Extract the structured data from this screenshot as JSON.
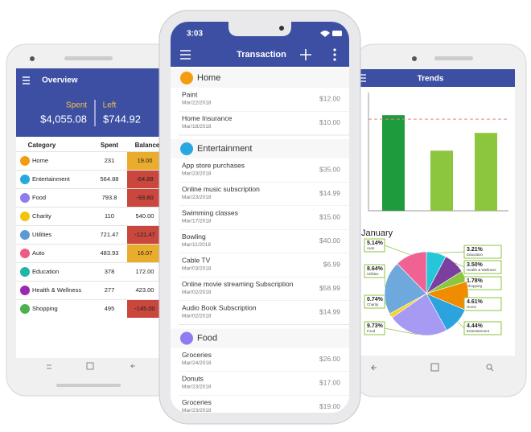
{
  "overview": {
    "title": "Overview",
    "spent_label": "Spent",
    "left_label": "Left",
    "spent": "$4,055.08",
    "left": "$744.92",
    "columns": [
      "Category",
      "Spent",
      "Balance"
    ],
    "rows": [
      {
        "category": "Home",
        "spent": "231",
        "balance": "19.00",
        "icon_color": "#f39c12",
        "balance_color": "#e9ac2c"
      },
      {
        "category": "Entertainment",
        "spent": "564.88",
        "balance": "-64.88",
        "icon_color": "#29a8e0",
        "balance_color": "#c9473d"
      },
      {
        "category": "Food",
        "spent": "793.8",
        "balance": "-93.80",
        "icon_color": "#8e7cf0",
        "balance_color": "#c9473d"
      },
      {
        "category": "Charity",
        "spent": "110",
        "balance": "540.00",
        "icon_color": "#f1c40f",
        "balance_color": "#ffffff"
      },
      {
        "category": "Utilities",
        "spent": "721.47",
        "balance": "-121.47",
        "icon_color": "#5b9bd5",
        "balance_color": "#c9473d"
      },
      {
        "category": "Auto",
        "spent": "483.93",
        "balance": "16.07",
        "icon_color": "#ef5b87",
        "balance_color": "#e9ac2c"
      },
      {
        "category": "Education",
        "spent": "378",
        "balance": "172.00",
        "icon_color": "#1fb5a8",
        "balance_color": "#ffffff"
      },
      {
        "category": "Health & Wellness",
        "spent": "277",
        "balance": "423.00",
        "icon_color": "#9c27b0",
        "balance_color": "#ffffff"
      },
      {
        "category": "Shopping",
        "spent": "495",
        "balance": "-145.00",
        "icon_color": "#4caf50",
        "balance_color": "#c9473d"
      }
    ]
  },
  "transaction": {
    "time": "3:03",
    "title": "Transaction",
    "groups": [
      {
        "name": "Home",
        "color": "#f39c12",
        "items": [
          {
            "name": "Paint",
            "date": "Mar/22/2018",
            "amount": "$12.00"
          },
          {
            "name": "Home Insurance",
            "date": "Mar/18/2018",
            "amount": "$10.00"
          }
        ]
      },
      {
        "name": "Entertainment",
        "color": "#29a8e0",
        "items": [
          {
            "name": "App store purchases",
            "date": "Mar/23/2018",
            "amount": "$35.00"
          },
          {
            "name": "Online music subscription",
            "date": "Mar/23/2018",
            "amount": "$14.99"
          },
          {
            "name": "Swimming classes",
            "date": "Mar/17/2018",
            "amount": "$15.00"
          },
          {
            "name": "Bowling",
            "date": "Mar/11/2018",
            "amount": "$40.00"
          },
          {
            "name": "Cable TV",
            "date": "Mar/03/2018",
            "amount": "$6.99"
          },
          {
            "name": "Online movie streaming Subscription",
            "date": "Mar/02/2018",
            "amount": "$58.99"
          },
          {
            "name": "Audio Book Subscription",
            "date": "Mar/02/2018",
            "amount": "$14.99"
          }
        ]
      },
      {
        "name": "Food",
        "color": "#8e7cf0",
        "items": [
          {
            "name": "Groceries",
            "date": "Mar/24/2018",
            "amount": "$26.00"
          },
          {
            "name": "Donuts",
            "date": "Mar/23/2018",
            "amount": "$17.00"
          },
          {
            "name": "Groceries",
            "date": "Mar/23/2018",
            "amount": "$19.00"
          }
        ]
      }
    ]
  },
  "trends": {
    "title": "Trends",
    "ylim": [
      0,
      120
    ],
    "bar_values": [
      97,
      61,
      79
    ],
    "bar_colors": [
      "#1e9b3c",
      "#8cc63f",
      "#8cc63f"
    ],
    "target": 93,
    "target_color": "#f08080",
    "pie": {
      "title": "January",
      "slices": [
        {
          "name": "Education",
          "value": 3.21,
          "value_label": "3.21%",
          "color": "#26c6da"
        },
        {
          "name": "Health & Wellness",
          "value": 3.5,
          "value_label": "3.50%",
          "color": "#7b3fa0"
        },
        {
          "name": "Shopping",
          "value": 1.78,
          "value_label": "1.78%",
          "color": "#8cc63f"
        },
        {
          "name": "Home",
          "value": 4.61,
          "value_label": "4.61%",
          "color": "#f08c00"
        },
        {
          "name": "Entertainment",
          "value": 4.44,
          "value_label": "4.44%",
          "color": "#2ba3df"
        },
        {
          "name": "Food",
          "value": 9.73,
          "value_label": "9.73%",
          "color": "#a79af2"
        },
        {
          "name": "Charity",
          "value": 0.74,
          "value_label": "0.74%",
          "color": "#f9d423"
        },
        {
          "name": "Utilities",
          "value": 8.64,
          "value_label": "8.64%",
          "color": "#6fa8dc"
        },
        {
          "name": "Auto",
          "value": 5.14,
          "value_label": "5.14%",
          "color": "#f06292"
        }
      ]
    }
  }
}
